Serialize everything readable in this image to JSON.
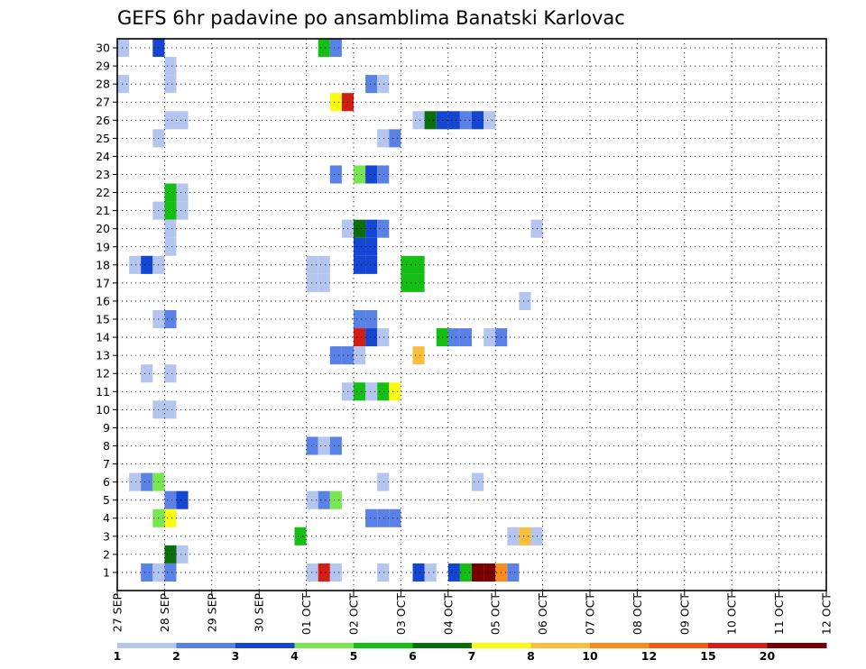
{
  "chart_data": {
    "type": "heatmap",
    "title": "GEFS 6hr padavine po ansamblima Banatski Karlovac",
    "xlabel": "",
    "ylabel": "",
    "x_ticks": [
      "27 SEP",
      "28 SEP",
      "29 SEP",
      "30 SEP",
      "01 OCT",
      "02 OCT",
      "03 OCT",
      "04 OCT",
      "05 OCT",
      "06 OCT",
      "07 OCT",
      "08 OCT",
      "09 OCT",
      "10 OCT",
      "11 OCT",
      "12 OCT"
    ],
    "x_step_hours": 6,
    "members": [
      1,
      2,
      3,
      4,
      5,
      6,
      7,
      8,
      9,
      10,
      11,
      12,
      13,
      14,
      15,
      16,
      17,
      18,
      19,
      20,
      21,
      22,
      23,
      24,
      25,
      26,
      27,
      28,
      29,
      30
    ],
    "grid": true,
    "legend_position": "bottom",
    "colorbar": {
      "labels": [
        "1",
        "2",
        "3",
        "4",
        "5",
        "6",
        "7",
        "8",
        "10",
        "12",
        "15",
        "20"
      ],
      "colors": [
        "#b4c6f0",
        "#5a82e6",
        "#1446d2",
        "#78e650",
        "#14be14",
        "#0a6e0a",
        "#fafa14",
        "#fabe3c",
        "#fa8c1e",
        "#f05a14",
        "#d21e14",
        "#780000"
      ]
    },
    "cells": [
      {
        "member": 30,
        "step": 0,
        "c": 0
      },
      {
        "member": 30,
        "step": 3,
        "c": 2
      },
      {
        "member": 30,
        "step": 17,
        "c": 4
      },
      {
        "member": 30,
        "step": 18,
        "c": 1
      },
      {
        "member": 29,
        "step": 4,
        "c": 0
      },
      {
        "member": 28,
        "step": 0,
        "c": 0
      },
      {
        "member": 28,
        "step": 4,
        "c": 0
      },
      {
        "member": 28,
        "step": 21,
        "c": 1
      },
      {
        "member": 28,
        "step": 22,
        "c": 0
      },
      {
        "member": 27,
        "step": 18,
        "c": 6
      },
      {
        "member": 27,
        "step": 19,
        "c": 10
      },
      {
        "member": 26,
        "step": 4,
        "c": 0
      },
      {
        "member": 26,
        "step": 5,
        "c": 0
      },
      {
        "member": 26,
        "step": 25,
        "c": 0
      },
      {
        "member": 26,
        "step": 26,
        "c": 5
      },
      {
        "member": 26,
        "step": 27,
        "c": 2
      },
      {
        "member": 26,
        "step": 28,
        "c": 2
      },
      {
        "member": 26,
        "step": 29,
        "c": 1
      },
      {
        "member": 26,
        "step": 30,
        "c": 2
      },
      {
        "member": 26,
        "step": 31,
        "c": 0
      },
      {
        "member": 25,
        "step": 3,
        "c": 0
      },
      {
        "member": 25,
        "step": 22,
        "c": 0
      },
      {
        "member": 25,
        "step": 23,
        "c": 1
      },
      {
        "member": 23,
        "step": 18,
        "c": 1
      },
      {
        "member": 23,
        "step": 20,
        "c": 3
      },
      {
        "member": 23,
        "step": 21,
        "c": 2
      },
      {
        "member": 23,
        "step": 22,
        "c": 1
      },
      {
        "member": 22,
        "step": 4,
        "c": 4
      },
      {
        "member": 22,
        "step": 5,
        "c": 0
      },
      {
        "member": 21,
        "step": 3,
        "c": 0
      },
      {
        "member": 21,
        "step": 4,
        "c": 4
      },
      {
        "member": 21,
        "step": 5,
        "c": 0
      },
      {
        "member": 20,
        "step": 4,
        "c": 0
      },
      {
        "member": 20,
        "step": 19,
        "c": 0
      },
      {
        "member": 20,
        "step": 20,
        "c": 5
      },
      {
        "member": 20,
        "step": 21,
        "c": 2
      },
      {
        "member": 20,
        "step": 22,
        "c": 1
      },
      {
        "member": 20,
        "step": 35,
        "c": 0
      },
      {
        "member": 19,
        "step": 4,
        "c": 0
      },
      {
        "member": 19,
        "step": 20,
        "c": 2
      },
      {
        "member": 19,
        "step": 21,
        "c": 2
      },
      {
        "member": 18,
        "step": 1,
        "c": 0
      },
      {
        "member": 18,
        "step": 20,
        "c": 2
      },
      {
        "member": 18,
        "step": 21,
        "c": 2
      },
      {
        "member": 18,
        "step": 2,
        "c": 2
      },
      {
        "member": 18,
        "step": 3,
        "c": 0
      },
      {
        "member": 18,
        "step": 16,
        "c": 0
      },
      {
        "member": 18,
        "step": 17,
        "c": 0
      },
      {
        "member": 18,
        "step": 24,
        "c": 4
      },
      {
        "member": 18,
        "step": 25,
        "c": 4
      },
      {
        "member": 17,
        "step": 16,
        "c": 0
      },
      {
        "member": 17,
        "step": 17,
        "c": 0
      },
      {
        "member": 17,
        "step": 24,
        "c": 4
      },
      {
        "member": 17,
        "step": 25,
        "c": 4
      },
      {
        "member": 16,
        "step": 34,
        "c": 0
      },
      {
        "member": 15,
        "step": 3,
        "c": 0
      },
      {
        "member": 15,
        "step": 4,
        "c": 1
      },
      {
        "member": 15,
        "step": 20,
        "c": 1
      },
      {
        "member": 15,
        "step": 21,
        "c": 1
      },
      {
        "member": 14,
        "step": 20,
        "c": 10
      },
      {
        "member": 14,
        "step": 21,
        "c": 2
      },
      {
        "member": 14,
        "step": 22,
        "c": 0
      },
      {
        "member": 14,
        "step": 27,
        "c": 4
      },
      {
        "member": 14,
        "step": 28,
        "c": 1
      },
      {
        "member": 14,
        "step": 29,
        "c": 1
      },
      {
        "member": 14,
        "step": 31,
        "c": 0
      },
      {
        "member": 14,
        "step": 32,
        "c": 1
      },
      {
        "member": 13,
        "step": 18,
        "c": 1
      },
      {
        "member": 13,
        "step": 19,
        "c": 1
      },
      {
        "member": 13,
        "step": 20,
        "c": 0
      },
      {
        "member": 13,
        "step": 25,
        "c": 7
      },
      {
        "member": 12,
        "step": 2,
        "c": 0
      },
      {
        "member": 12,
        "step": 4,
        "c": 0
      },
      {
        "member": 11,
        "step": 19,
        "c": 0
      },
      {
        "member": 11,
        "step": 20,
        "c": 4
      },
      {
        "member": 11,
        "step": 21,
        "c": 0
      },
      {
        "member": 11,
        "step": 22,
        "c": 4
      },
      {
        "member": 11,
        "step": 23,
        "c": 6
      },
      {
        "member": 10,
        "step": 3,
        "c": 0
      },
      {
        "member": 10,
        "step": 4,
        "c": 0
      },
      {
        "member": 8,
        "step": 16,
        "c": 1
      },
      {
        "member": 8,
        "step": 17,
        "c": 0
      },
      {
        "member": 8,
        "step": 18,
        "c": 1
      },
      {
        "member": 6,
        "step": 1,
        "c": 0
      },
      {
        "member": 6,
        "step": 2,
        "c": 1
      },
      {
        "member": 6,
        "step": 3,
        "c": 3
      },
      {
        "member": 6,
        "step": 22,
        "c": 0
      },
      {
        "member": 6,
        "step": 30,
        "c": 0
      },
      {
        "member": 5,
        "step": 4,
        "c": 1
      },
      {
        "member": 5,
        "step": 5,
        "c": 2
      },
      {
        "member": 5,
        "step": 16,
        "c": 0
      },
      {
        "member": 5,
        "step": 17,
        "c": 1
      },
      {
        "member": 5,
        "step": 18,
        "c": 3
      },
      {
        "member": 4,
        "step": 3,
        "c": 3
      },
      {
        "member": 4,
        "step": 4,
        "c": 6
      },
      {
        "member": 4,
        "step": 21,
        "c": 1
      },
      {
        "member": 4,
        "step": 22,
        "c": 1
      },
      {
        "member": 4,
        "step": 23,
        "c": 1
      },
      {
        "member": 3,
        "step": 15,
        "c": 4
      },
      {
        "member": 3,
        "step": 33,
        "c": 0
      },
      {
        "member": 3,
        "step": 34,
        "c": 7
      },
      {
        "member": 3,
        "step": 35,
        "c": 0
      },
      {
        "member": 2,
        "step": 4,
        "c": 5
      },
      {
        "member": 2,
        "step": 5,
        "c": 0
      },
      {
        "member": 1,
        "step": 2,
        "c": 1
      },
      {
        "member": 1,
        "step": 3,
        "c": 0
      },
      {
        "member": 1,
        "step": 4,
        "c": 1
      },
      {
        "member": 1,
        "step": 16,
        "c": 0
      },
      {
        "member": 1,
        "step": 17,
        "c": 10
      },
      {
        "member": 1,
        "step": 18,
        "c": 0
      },
      {
        "member": 1,
        "step": 22,
        "c": 0
      },
      {
        "member": 1,
        "step": 25,
        "c": 2
      },
      {
        "member": 1,
        "step": 26,
        "c": 0
      },
      {
        "member": 1,
        "step": 28,
        "c": 2
      },
      {
        "member": 1,
        "step": 29,
        "c": 4
      },
      {
        "member": 1,
        "step": 30,
        "c": 11
      },
      {
        "member": 1,
        "step": 31,
        "c": 11
      },
      {
        "member": 1,
        "step": 32,
        "c": 8
      },
      {
        "member": 1,
        "step": 33,
        "c": 1
      }
    ]
  }
}
